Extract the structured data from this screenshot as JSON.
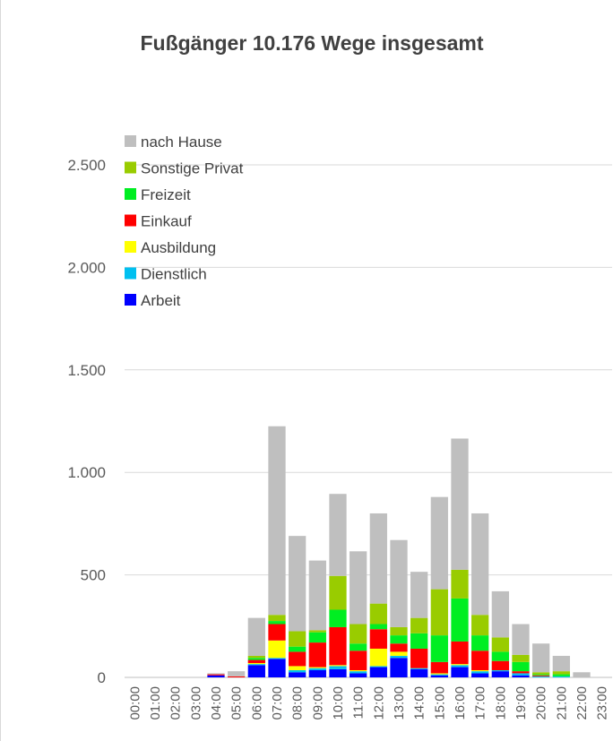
{
  "chart_data": {
    "type": "bar",
    "stacked": true,
    "title": "Fußgänger 10.176 Wege insgesamt",
    "xlabel": "",
    "ylabel": "",
    "ylim": [
      0,
      2500
    ],
    "y_ticks": [
      0,
      500,
      1000,
      1500,
      2000,
      2500
    ],
    "y_tick_labels": [
      "0",
      "500",
      "1.000",
      "1.500",
      "2.000",
      "2.500"
    ],
    "grid": true,
    "legend_position": "top-left",
    "categories": [
      "00:00",
      "01:00",
      "02:00",
      "03:00",
      "04:00",
      "05:00",
      "06:00",
      "07:00",
      "08:00",
      "09:00",
      "10:00",
      "11:00",
      "12:00",
      "13:00",
      "14:00",
      "15:00",
      "16:00",
      "17:00",
      "18:00",
      "19:00",
      "20:00",
      "21:00",
      "22:00",
      "23:00"
    ],
    "series": [
      {
        "name": "Arbeit",
        "color": "#0000ff",
        "values": [
          0,
          0,
          0,
          0,
          10,
          0,
          60,
          90,
          25,
          35,
          40,
          20,
          50,
          95,
          40,
          10,
          50,
          20,
          30,
          10,
          0,
          0,
          0,
          0
        ]
      },
      {
        "name": "Dienstlich",
        "color": "#00c0f0",
        "values": [
          0,
          0,
          0,
          0,
          0,
          0,
          5,
          5,
          10,
          10,
          15,
          10,
          5,
          10,
          5,
          5,
          10,
          10,
          5,
          10,
          5,
          5,
          0,
          0
        ]
      },
      {
        "name": "Ausbildung",
        "color": "#ffff00",
        "values": [
          0,
          0,
          0,
          0,
          0,
          0,
          5,
          85,
          20,
          5,
          5,
          5,
          85,
          20,
          0,
          5,
          5,
          5,
          0,
          0,
          0,
          0,
          0,
          0
        ]
      },
      {
        "name": "Einkauf",
        "color": "#ff0000",
        "values": [
          0,
          0,
          0,
          0,
          5,
          5,
          15,
          80,
          70,
          120,
          185,
          95,
          95,
          40,
          95,
          55,
          110,
          95,
          45,
          10,
          5,
          0,
          0,
          0
        ]
      },
      {
        "name": "Freizeit",
        "color": "#00ee22",
        "values": [
          0,
          0,
          0,
          0,
          0,
          0,
          10,
          15,
          25,
          50,
          85,
          35,
          25,
          40,
          75,
          130,
          210,
          75,
          45,
          45,
          5,
          10,
          0,
          0
        ]
      },
      {
        "name": "Sonstige Privat",
        "color": "#99cc00",
        "values": [
          0,
          0,
          0,
          0,
          0,
          0,
          10,
          30,
          75,
          10,
          165,
          95,
          100,
          40,
          75,
          225,
          140,
          100,
          70,
          35,
          10,
          15,
          0,
          0
        ]
      },
      {
        "name": "nach Hause",
        "color": "#bfbfbf",
        "values": [
          0,
          0,
          0,
          0,
          5,
          25,
          185,
          920,
          465,
          340,
          400,
          355,
          440,
          425,
          225,
          450,
          640,
          495,
          225,
          150,
          140,
          75,
          25,
          0
        ]
      }
    ]
  }
}
